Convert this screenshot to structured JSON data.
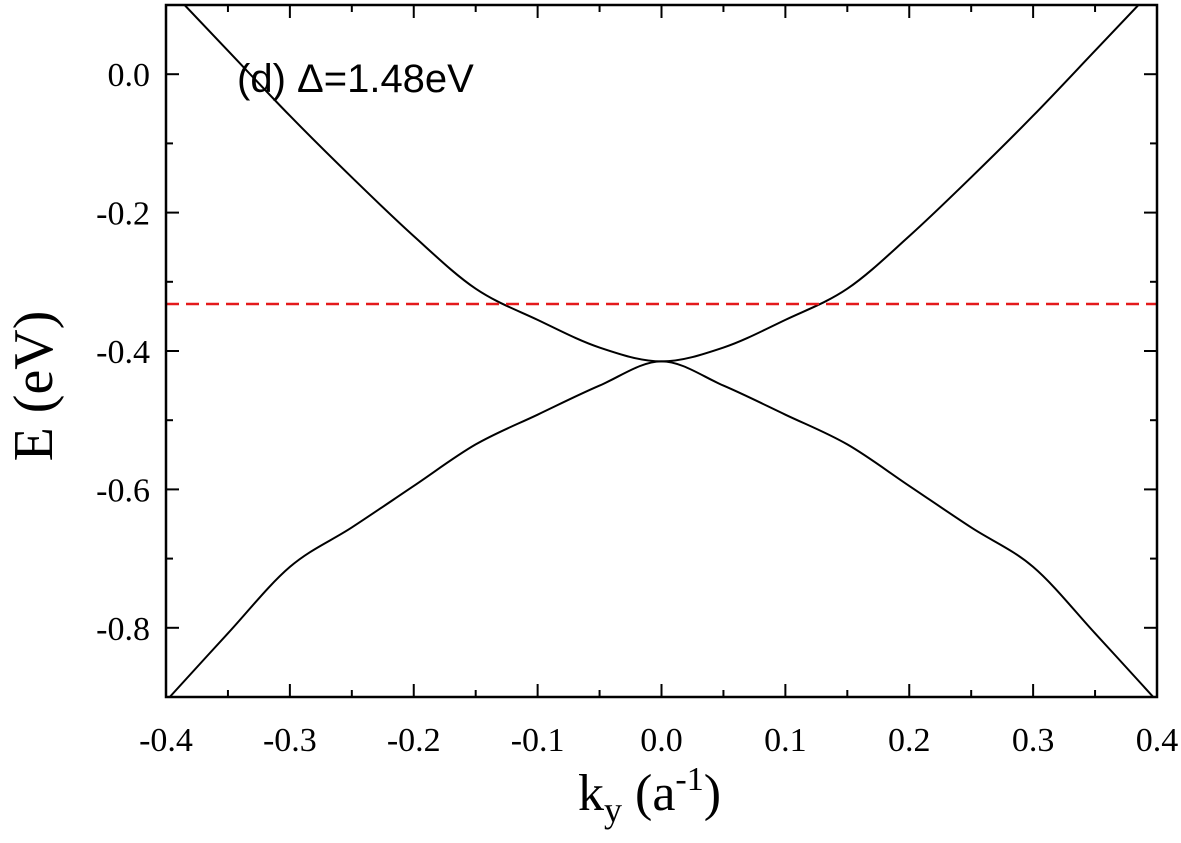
{
  "chart_data": {
    "type": "line",
    "annotation": "(d) Δ=1.48eV",
    "xlabel": {
      "main": "k",
      "sub": "y",
      "unit_open": " (a",
      "unit_sup": "-1",
      "unit_close": ")"
    },
    "ylabel": "E (eV)",
    "xlim": [
      -0.4,
      0.4
    ],
    "ylim": [
      -0.9,
      0.1
    ],
    "x_ticks": [
      -0.4,
      -0.3,
      -0.2,
      -0.1,
      0.0,
      0.1,
      0.2,
      0.3,
      0.4
    ],
    "x_tick_labels": [
      "-0.4",
      "-0.3",
      "-0.2",
      "-0.1",
      "0.0",
      "0.1",
      "0.2",
      "0.3",
      "0.4"
    ],
    "y_ticks": [
      0.0,
      -0.2,
      -0.4,
      -0.6,
      -0.8
    ],
    "y_tick_labels": [
      "0.0",
      "-0.2",
      "-0.4",
      "-0.6",
      "-0.8"
    ],
    "grid": false,
    "series": [
      {
        "color": "#000000",
        "dash": "solid",
        "x": [
          -0.385,
          -0.35,
          -0.3,
          -0.25,
          -0.2,
          -0.15,
          -0.1,
          -0.05,
          0.0,
          0.05,
          0.1,
          0.15,
          0.2,
          0.25,
          0.3,
          0.35,
          0.385
        ],
        "y": [
          0.1,
          0.034,
          -0.06,
          -0.149,
          -0.234,
          -0.31,
          -0.355,
          -0.395,
          -0.415,
          -0.395,
          -0.355,
          -0.31,
          -0.234,
          -0.149,
          -0.06,
          0.034,
          0.1
        ]
      },
      {
        "color": "#000000",
        "dash": "solid",
        "x": [
          -0.397,
          -0.35,
          -0.3,
          -0.25,
          -0.2,
          -0.15,
          -0.1,
          -0.05,
          0.0,
          0.05,
          0.1,
          0.15,
          0.2,
          0.25,
          0.3,
          0.35,
          0.397
        ],
        "y": [
          -0.9,
          -0.808,
          -0.712,
          -0.655,
          -0.595,
          -0.535,
          -0.492,
          -0.45,
          -0.415,
          -0.45,
          -0.492,
          -0.535,
          -0.595,
          -0.655,
          -0.712,
          -0.808,
          -0.9
        ]
      },
      {
        "color": "#e41a1c",
        "dash": "dashed",
        "x": [
          -0.4,
          0.4
        ],
        "y": [
          -0.332,
          -0.332
        ]
      }
    ]
  }
}
